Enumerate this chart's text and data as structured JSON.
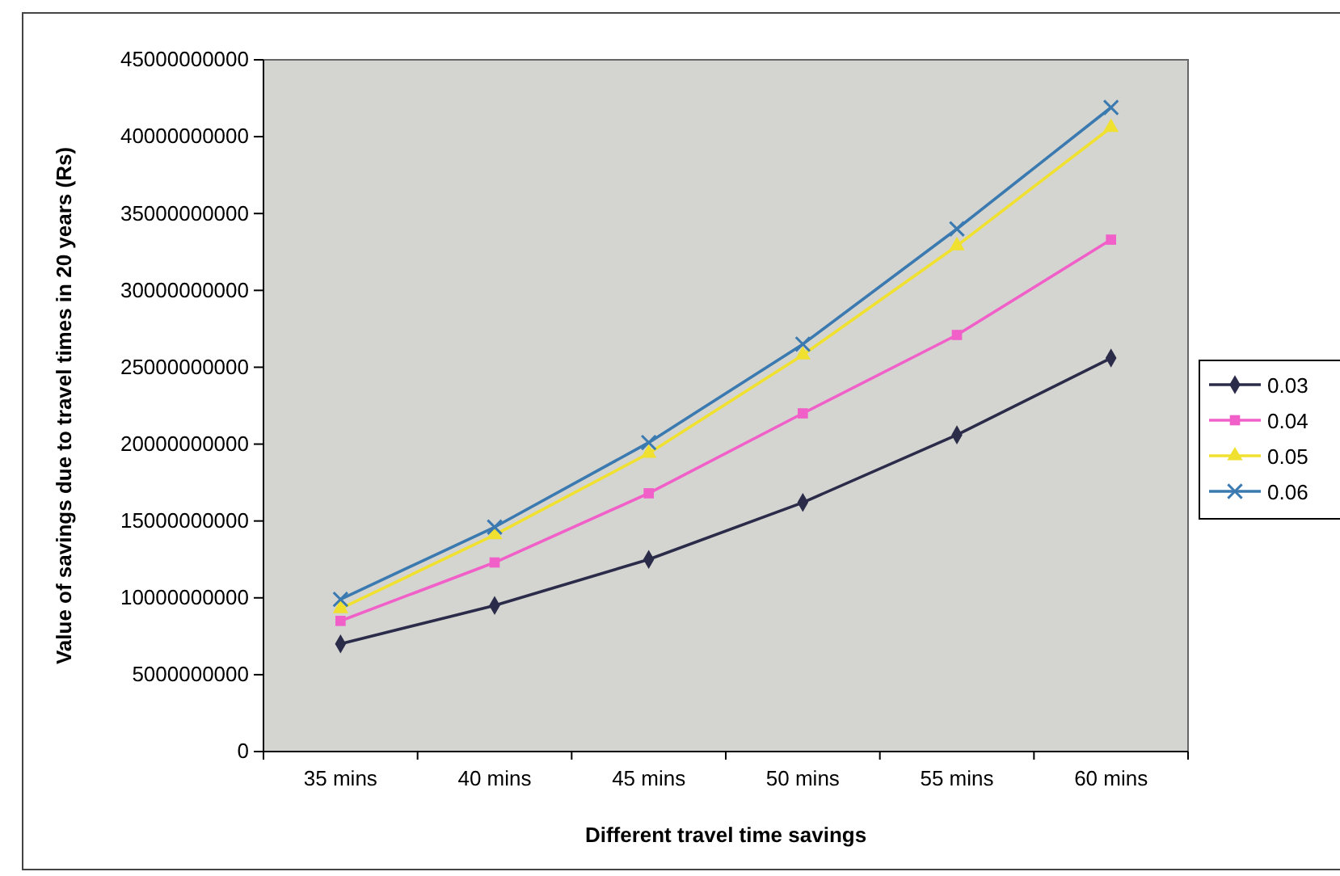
{
  "chart_data": {
    "type": "line",
    "xlabel": "Different travel time savings",
    "ylabel": "Value of savings due to travel times in 20 years (Rs)",
    "categories": [
      "35 mins",
      "40 mins",
      "45 mins",
      "50 mins",
      "55 mins",
      "60 mins"
    ],
    "ylim": [
      0,
      45000000000
    ],
    "yticks": [
      0,
      5000000000,
      10000000000,
      15000000000,
      20000000000,
      25000000000,
      30000000000,
      35000000000,
      40000000000,
      45000000000
    ],
    "grid": false,
    "legend": "right",
    "series": [
      {
        "name": "0.03",
        "color": "#2b2b4a",
        "marker": "diamond",
        "values": [
          7000000000,
          9500000000,
          12500000000,
          16200000000,
          20600000000,
          25600000000
        ]
      },
      {
        "name": "0.04",
        "color": "#f060c8",
        "marker": "square",
        "values": [
          8500000000,
          12300000000,
          16800000000,
          22000000000,
          27100000000,
          33300000000
        ]
      },
      {
        "name": "0.05",
        "color": "#f0e030",
        "marker": "triangle",
        "values": [
          9300000000,
          14100000000,
          19400000000,
          25800000000,
          32900000000,
          40600000000
        ]
      },
      {
        "name": "0.06",
        "color": "#3a7ab0",
        "marker": "cross",
        "values": [
          9900000000,
          14600000000,
          20100000000,
          26500000000,
          34000000000,
          41900000000
        ]
      }
    ]
  }
}
